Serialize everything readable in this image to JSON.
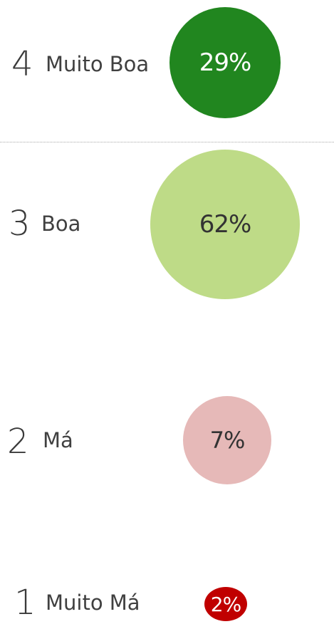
{
  "chart_data": {
    "type": "bubble",
    "categories": [
      {
        "rank": "4",
        "label": "Muito Boa",
        "value": 29,
        "value_label": "29%",
        "color": "#21861f",
        "text_color": "#ffffff"
      },
      {
        "rank": "3",
        "label": "Boa",
        "value": 62,
        "value_label": "62%",
        "color": "#bedb87",
        "text_color": "#333333"
      },
      {
        "rank": "2",
        "label": "Má",
        "value": 7,
        "value_label": "7%",
        "color": "#e6b9b8",
        "text_color": "#333333"
      },
      {
        "rank": "1",
        "label": "Muito Má",
        "value": 2,
        "value_label": "2%",
        "color": "#c00000",
        "text_color": "#ffffff"
      }
    ]
  }
}
